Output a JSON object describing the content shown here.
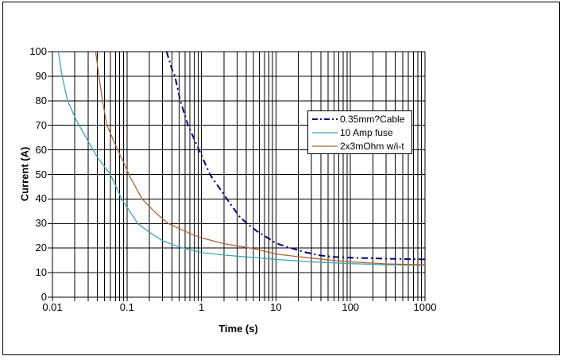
{
  "window": {
    "background": "#ffffff",
    "border_color": "#000000"
  },
  "chart_data": {
    "type": "line",
    "title": "",
    "xlabel": "Time (s)",
    "ylabel": "Current (A)",
    "x_scale": "log",
    "xlim": [
      0.01,
      1000
    ],
    "ylim": [
      0,
      100
    ],
    "x_tick_labels": [
      "0.01",
      "0.1",
      "1",
      "10",
      "100",
      "1000"
    ],
    "x_tick_values": [
      0.01,
      0.1,
      1,
      10,
      100,
      1000
    ],
    "x_minor_multiples": [
      2,
      3,
      4,
      5,
      6,
      7,
      8,
      9
    ],
    "y_tick_labels": [
      "0",
      "10",
      "20",
      "30",
      "40",
      "50",
      "60",
      "70",
      "80",
      "90",
      "100"
    ],
    "y_tick_step": 10,
    "grid": "x log major+minor, y major",
    "grid_color": "#000000",
    "legend_position": "inside-top-right",
    "series": [
      {
        "name": "0.35mm?Cable",
        "color": "#000082",
        "dash": "8 4 2 4",
        "width": 2,
        "points": [
          [
            0.34,
            100
          ],
          [
            0.4,
            93
          ],
          [
            0.44,
            90
          ],
          [
            0.52,
            80
          ],
          [
            0.66,
            70
          ],
          [
            0.93,
            60
          ],
          [
            1.3,
            50
          ],
          [
            2.2,
            40
          ],
          [
            3.2,
            33
          ],
          [
            4.1,
            30
          ],
          [
            5.5,
            27
          ],
          [
            7,
            25
          ],
          [
            10,
            22
          ],
          [
            13,
            20.8
          ],
          [
            16,
            20
          ],
          [
            25,
            18.3
          ],
          [
            40,
            17
          ],
          [
            60,
            16.4
          ],
          [
            100,
            16.1
          ],
          [
            300,
            15.7
          ],
          [
            1000,
            15.4
          ]
        ]
      },
      {
        "name": "10 Amp fuse",
        "color": "#3aa6b6",
        "dash": "",
        "width": 1.3,
        "points": [
          [
            0.012,
            100
          ],
          [
            0.0135,
            90
          ],
          [
            0.016,
            80
          ],
          [
            0.021,
            72
          ],
          [
            0.027,
            66
          ],
          [
            0.04,
            57
          ],
          [
            0.06,
            50
          ],
          [
            0.085,
            40
          ],
          [
            0.14,
            30
          ],
          [
            0.2,
            26.5
          ],
          [
            0.3,
            23
          ],
          [
            0.5,
            20.5
          ],
          [
            1,
            18.2
          ],
          [
            2,
            17.2
          ],
          [
            4,
            16.4
          ],
          [
            10,
            15.4
          ],
          [
            30,
            14.4
          ],
          [
            100,
            13.7
          ],
          [
            300,
            13.2
          ],
          [
            1000,
            13
          ]
        ]
      },
      {
        "name": "2x3mOhm w/i-t",
        "color": "#b3622f",
        "dash": "",
        "width": 1.3,
        "points": [
          [
            0.038,
            100
          ],
          [
            0.042,
            90
          ],
          [
            0.047,
            80
          ],
          [
            0.054,
            70
          ],
          [
            0.07,
            62
          ],
          [
            0.09,
            55
          ],
          [
            0.11,
            49
          ],
          [
            0.16,
            40
          ],
          [
            0.25,
            34
          ],
          [
            0.36,
            30
          ],
          [
            0.7,
            26
          ],
          [
            1,
            24.2
          ],
          [
            2,
            21.8
          ],
          [
            5,
            19.8
          ],
          [
            10,
            17.6
          ],
          [
            20,
            16.5
          ],
          [
            50,
            15.2
          ],
          [
            100,
            14.4
          ],
          [
            300,
            13.6
          ],
          [
            1000,
            13.2
          ]
        ]
      }
    ]
  }
}
